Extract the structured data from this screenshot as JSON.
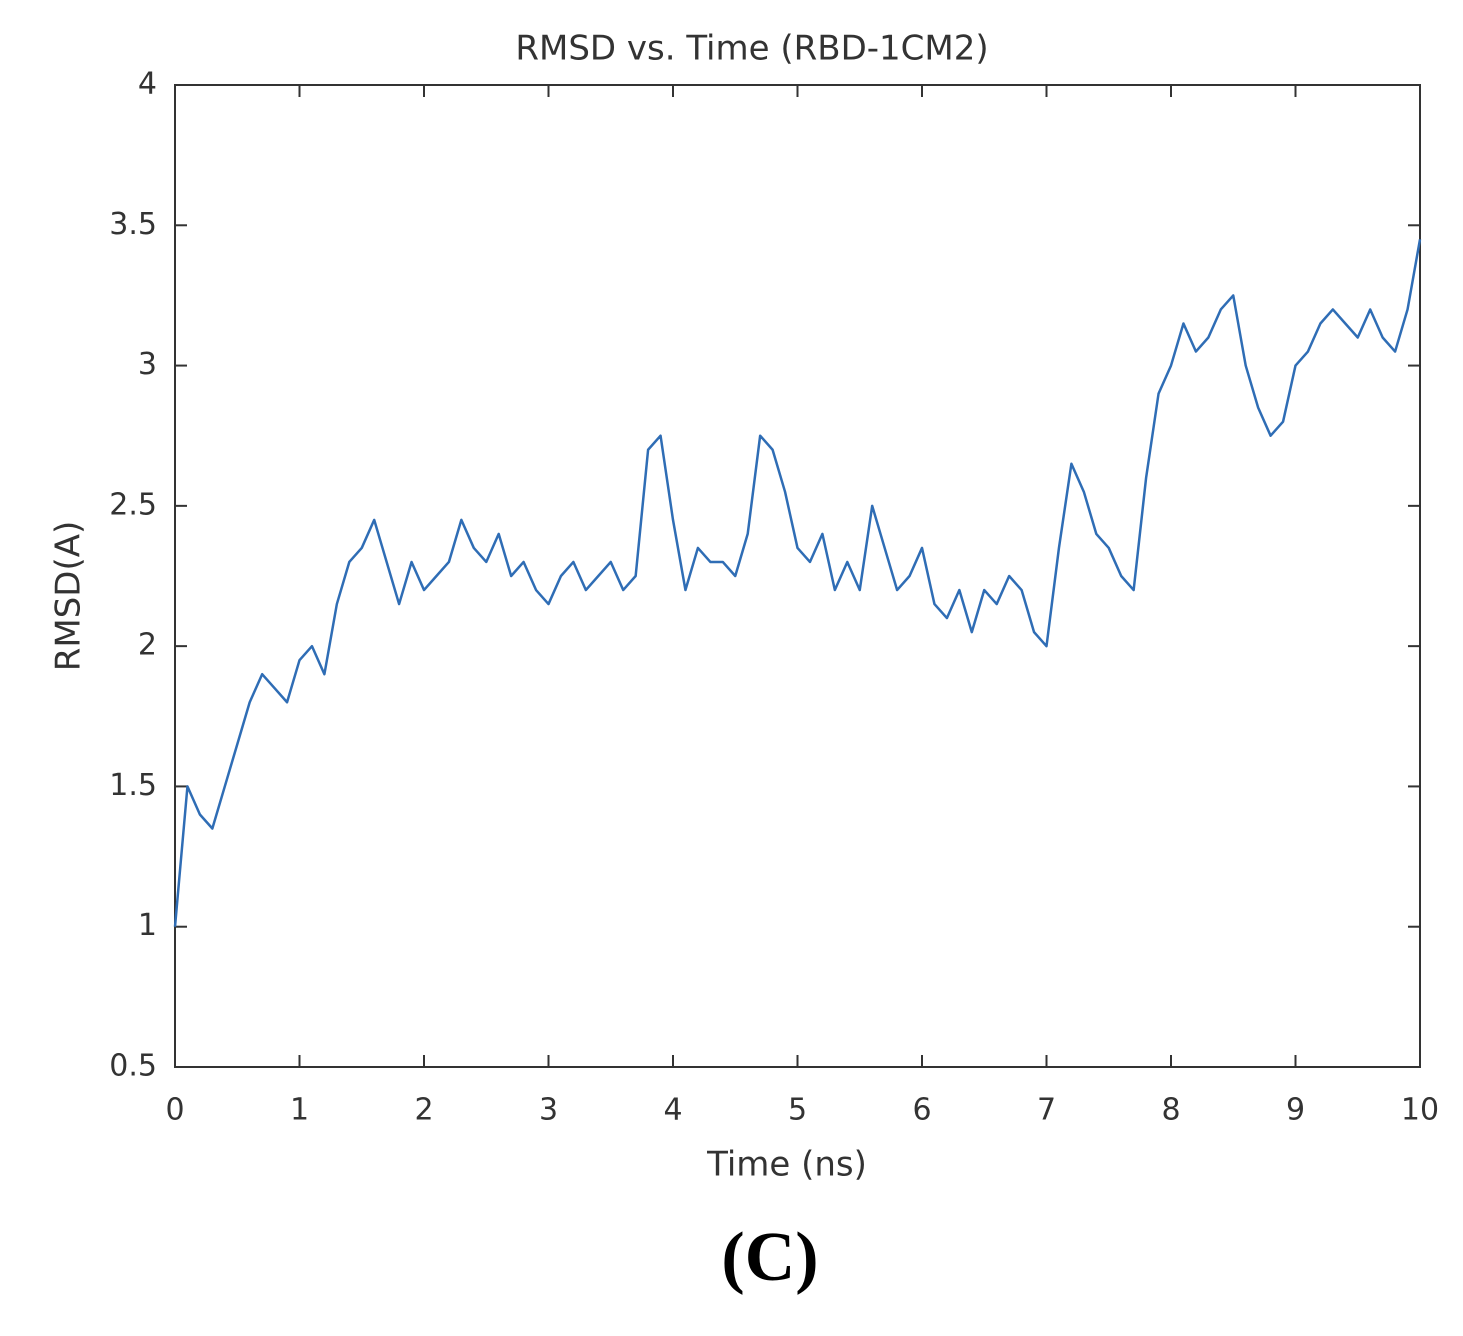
{
  "chart_data": {
    "type": "line",
    "title": "RMSD vs. Time (RBD-1CM2)",
    "xlabel": "Time (ns)",
    "ylabel": "RMSD(A)",
    "panel_label": "(C)",
    "x": [
      0,
      0.1,
      0.2,
      0.3,
      0.4,
      0.5,
      0.6,
      0.7,
      0.8,
      0.9,
      1,
      1.1,
      1.2,
      1.3,
      1.4,
      1.5,
      1.6,
      1.7,
      1.8,
      1.9,
      2,
      2.1,
      2.2,
      2.3,
      2.4,
      2.5,
      2.6,
      2.7,
      2.8,
      2.9,
      3,
      3.1,
      3.2,
      3.3,
      3.4,
      3.5,
      3.6,
      3.7,
      3.8,
      3.9,
      4,
      4.1,
      4.2,
      4.3,
      4.4,
      4.5,
      4.6,
      4.7,
      4.8,
      4.9,
      5,
      5.1,
      5.2,
      5.3,
      5.4,
      5.5,
      5.6,
      5.7,
      5.8,
      5.9,
      6,
      6.1,
      6.2,
      6.3,
      6.4,
      6.5,
      6.6,
      6.7,
      6.8,
      6.9,
      7,
      7.1,
      7.2,
      7.3,
      7.4,
      7.5,
      7.6,
      7.7,
      7.8,
      7.9,
      8,
      8.1,
      8.2,
      8.3,
      8.4,
      8.5,
      8.6,
      8.7,
      8.8,
      8.9,
      9,
      9.1,
      9.2,
      9.3,
      9.4,
      9.5,
      9.6,
      9.7,
      9.8,
      9.9,
      10
    ],
    "series": [
      {
        "name": "RMSD",
        "color": "#2f6db5",
        "values": [
          1.0,
          1.5,
          1.4,
          1.35,
          1.5,
          1.65,
          1.8,
          1.9,
          1.85,
          1.8,
          1.95,
          2.0,
          1.9,
          2.15,
          2.3,
          2.35,
          2.45,
          2.3,
          2.15,
          2.3,
          2.2,
          2.25,
          2.3,
          2.45,
          2.35,
          2.3,
          2.4,
          2.25,
          2.3,
          2.2,
          2.15,
          2.25,
          2.3,
          2.2,
          2.25,
          2.3,
          2.2,
          2.25,
          2.7,
          2.75,
          2.45,
          2.2,
          2.35,
          2.3,
          2.3,
          2.25,
          2.4,
          2.75,
          2.7,
          2.55,
          2.35,
          2.3,
          2.4,
          2.2,
          2.3,
          2.2,
          2.5,
          2.35,
          2.2,
          2.25,
          2.35,
          2.15,
          2.1,
          2.2,
          2.05,
          2.2,
          2.15,
          2.25,
          2.2,
          2.05,
          2.0,
          2.35,
          2.65,
          2.55,
          2.4,
          2.35,
          2.25,
          2.2,
          2.6,
          2.9,
          3.0,
          3.15,
          3.05,
          3.1,
          3.2,
          3.25,
          3.0,
          2.85,
          2.75,
          2.8,
          3.0,
          3.05,
          3.15,
          3.2,
          3.15,
          3.1,
          3.2,
          3.1,
          3.05,
          3.2,
          3.45
        ]
      }
    ],
    "xlim": [
      0,
      10
    ],
    "ylim": [
      0.5,
      4
    ],
    "xticks": [
      0,
      1,
      2,
      3,
      4,
      5,
      6,
      7,
      8,
      9,
      10
    ],
    "yticks": [
      0.5,
      1,
      1.5,
      2,
      2.5,
      3,
      3.5,
      4
    ]
  }
}
